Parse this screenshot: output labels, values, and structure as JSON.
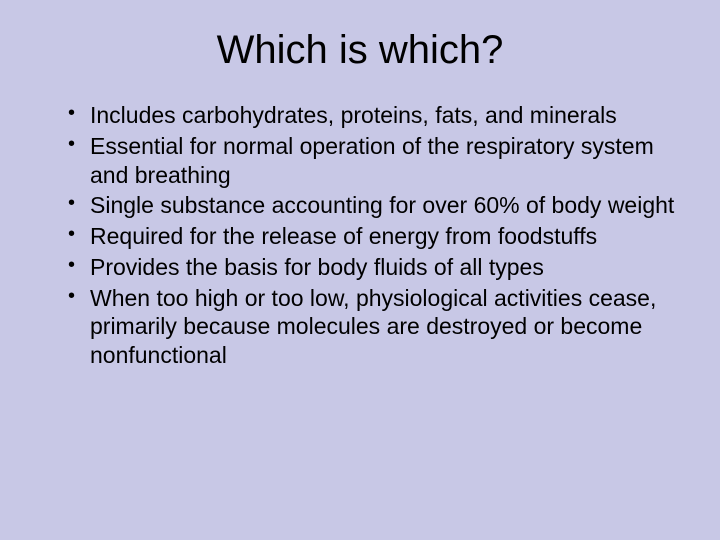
{
  "slide": {
    "background_color": "#c8c8e6",
    "text_color": "#000000",
    "title": "Which is which?",
    "title_fontsize": 40,
    "bullet_fontsize": 23,
    "bullets": [
      "Includes carbohydrates, proteins, fats, and minerals",
      "Essential for normal operation of the respiratory system and breathing",
      "Single substance accounting for over 60% of body weight",
      "Required for the release of energy from foodstuffs",
      "Provides the basis for body fluids of all types",
      "When too high or too low, physiological activities cease, primarily because molecules are destroyed or become nonfunctional"
    ]
  }
}
